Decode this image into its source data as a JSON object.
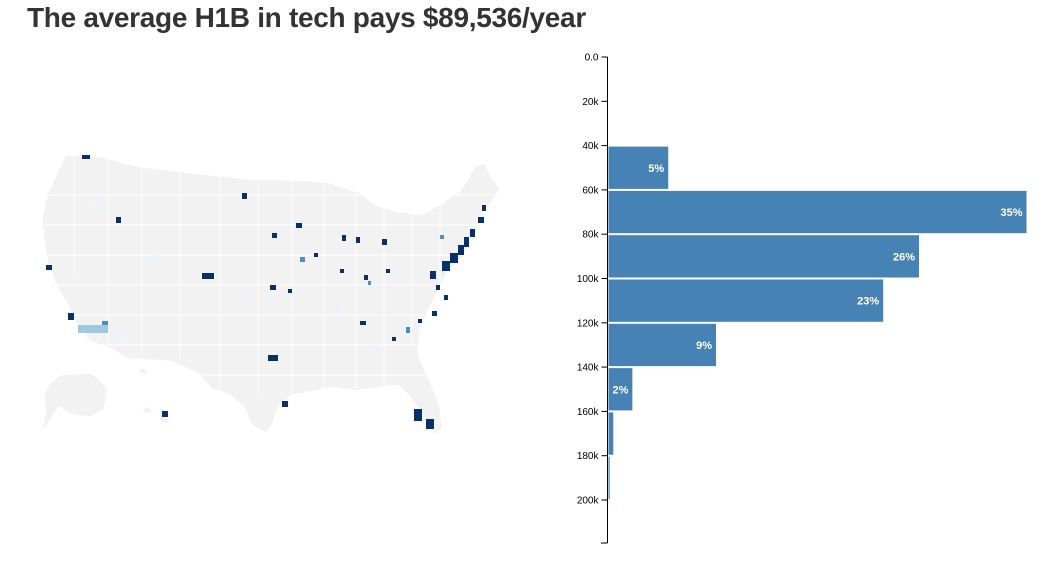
{
  "title": "The average H1B in tech pays $89,536/year",
  "colors": {
    "bar": "#4682b4",
    "map_land": "#f2f2f2",
    "map_border": "#ffffff",
    "map_high": "#08306b",
    "map_mid": "#4a90c8",
    "map_low": "#9ecae1",
    "map_faint": "#eaf2fb"
  },
  "chart_data": [
    {
      "type": "bar",
      "orientation": "horizontal",
      "y_ticks": [
        "0.0",
        "20k",
        "40k",
        "60k",
        "80k",
        "100k",
        "120k",
        "140k",
        "160k",
        "180k",
        "200k"
      ],
      "ylim": [
        0,
        220000
      ],
      "bins": [
        {
          "from": 40000,
          "to": 60000,
          "share": 5,
          "label": "5%"
        },
        {
          "from": 60000,
          "to": 80000,
          "share": 35,
          "label": "35%"
        },
        {
          "from": 80000,
          "to": 100000,
          "share": 26,
          "label": "26%"
        },
        {
          "from": 100000,
          "to": 120000,
          "share": 23,
          "label": "23%"
        },
        {
          "from": 120000,
          "to": 140000,
          "share": 9,
          "label": "9%"
        },
        {
          "from": 140000,
          "to": 160000,
          "share": 2,
          "label": "2%"
        },
        {
          "from": 160000,
          "to": 180000,
          "share": 0.4,
          "label": ""
        },
        {
          "from": 180000,
          "to": 200000,
          "share": 0.1,
          "label": ""
        }
      ],
      "max_share": 35
    }
  ]
}
